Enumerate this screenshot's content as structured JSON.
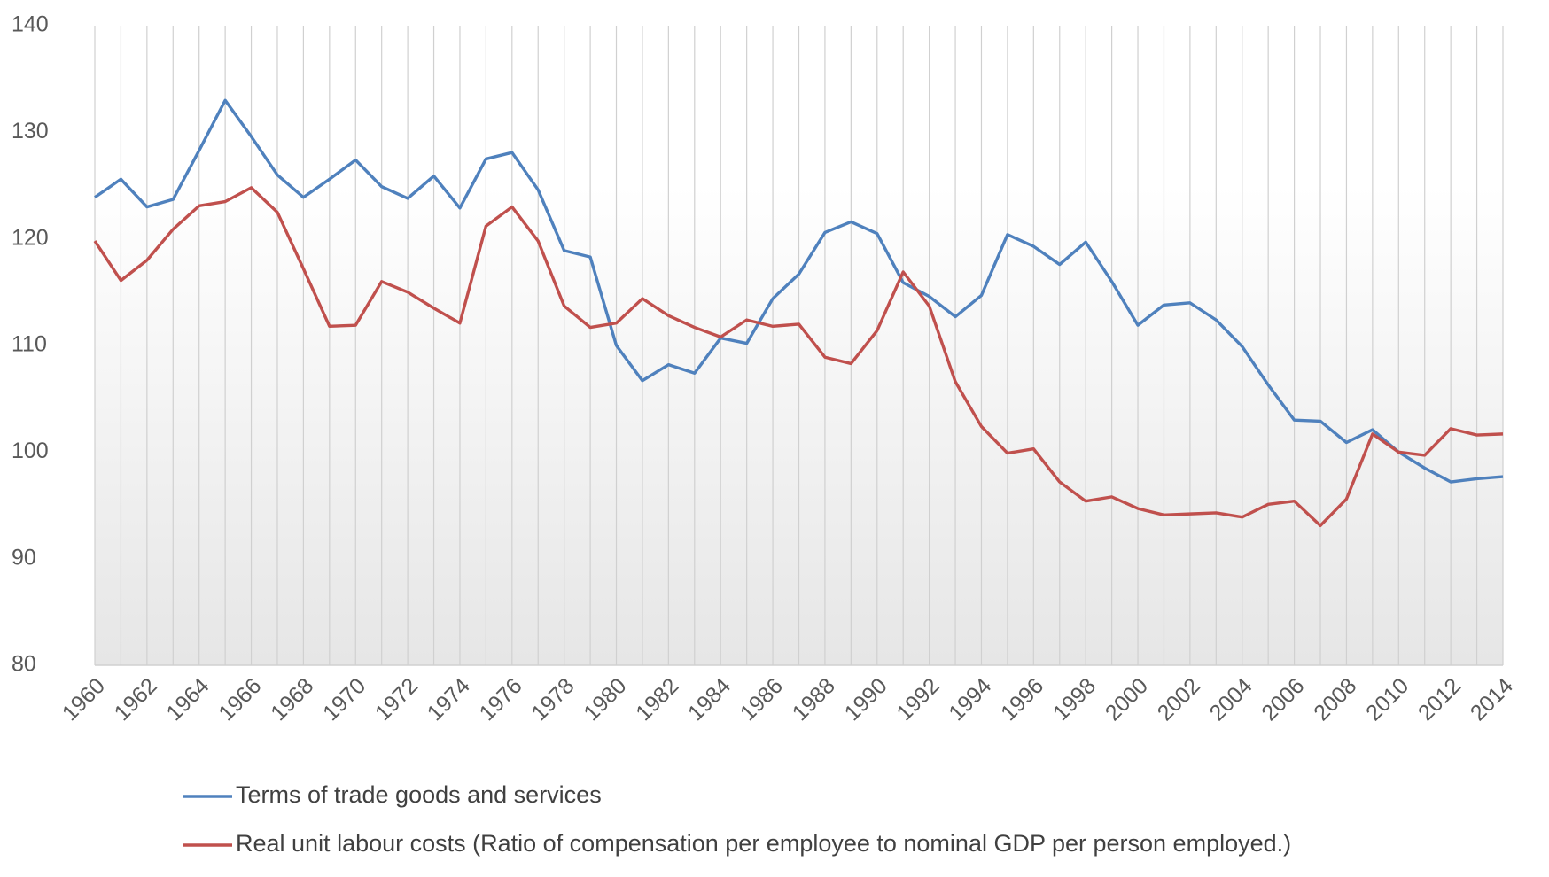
{
  "chart_data": {
    "type": "line",
    "x": [
      1960,
      1961,
      1962,
      1963,
      1964,
      1965,
      1966,
      1967,
      1968,
      1969,
      1970,
      1971,
      1972,
      1973,
      1974,
      1975,
      1976,
      1977,
      1978,
      1979,
      1980,
      1981,
      1982,
      1983,
      1984,
      1985,
      1986,
      1987,
      1988,
      1989,
      1990,
      1991,
      1992,
      1993,
      1994,
      1995,
      1996,
      1997,
      1998,
      1999,
      2000,
      2001,
      2002,
      2003,
      2004,
      2005,
      2006,
      2007,
      2008,
      2009,
      2010,
      2011,
      2012,
      2013,
      2014
    ],
    "series": [
      {
        "name": "Terms of trade goods and services",
        "color": "#4f81bd",
        "values": [
          123.9,
          125.6,
          123.0,
          123.7,
          128.3,
          133.0,
          129.6,
          126.0,
          123.9,
          125.6,
          127.4,
          124.9,
          123.8,
          125.9,
          122.9,
          127.5,
          128.1,
          124.6,
          118.9,
          118.3,
          110.0,
          106.7,
          108.2,
          107.4,
          110.7,
          110.2,
          114.4,
          116.7,
          120.6,
          121.6,
          120.5,
          115.9,
          114.6,
          112.7,
          114.7,
          120.4,
          119.3,
          117.6,
          119.7,
          116.0,
          111.9,
          113.8,
          114.0,
          112.4,
          109.9,
          106.3,
          103.0,
          102.9,
          100.9,
          102.1,
          100.0,
          98.5,
          97.2,
          97.5,
          97.7
        ]
      },
      {
        "name": "Real unit labour costs (Ratio of compensation per employee to nominal GDP per person employed.)",
        "color": "#c0504d",
        "values": [
          119.8,
          116.1,
          118.0,
          120.9,
          123.1,
          123.5,
          124.8,
          122.5,
          117.2,
          111.8,
          111.9,
          116.0,
          115.0,
          113.5,
          112.1,
          121.2,
          123.0,
          119.8,
          113.7,
          111.7,
          112.1,
          114.4,
          112.8,
          111.7,
          110.8,
          112.4,
          111.8,
          112.0,
          108.9,
          108.3,
          111.4,
          116.9,
          113.7,
          106.6,
          102.4,
          99.9,
          100.3,
          97.2,
          95.4,
          95.8,
          94.7,
          94.1,
          94.2,
          94.3,
          93.9,
          95.1,
          95.4,
          93.1,
          95.6,
          101.7,
          100.0,
          99.7,
          102.2,
          101.6,
          101.7
        ]
      }
    ],
    "xlim": [
      1960,
      2014
    ],
    "xticks": [
      1960,
      1962,
      1964,
      1966,
      1968,
      1970,
      1972,
      1974,
      1976,
      1978,
      1980,
      1982,
      1984,
      1986,
      1988,
      1990,
      1992,
      1994,
      1996,
      1998,
      2000,
      2002,
      2004,
      2006,
      2008,
      2010,
      2012,
      2014
    ],
    "ylim": [
      80,
      140
    ],
    "yticks": [
      80,
      90,
      100,
      110,
      120,
      130,
      140
    ],
    "grid": "x",
    "legend": "bottom"
  }
}
